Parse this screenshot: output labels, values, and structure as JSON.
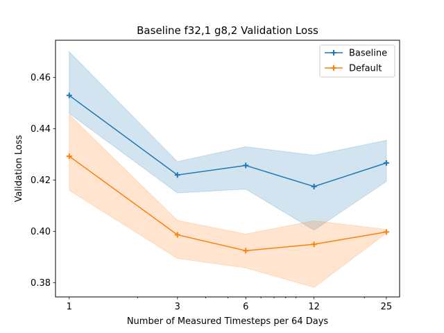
{
  "chart_data": {
    "type": "line",
    "title": "Baseline f32,1 g8,2 Validation Loss",
    "xlabel": "Number of Measured Timesteps per 64 Days",
    "ylabel": "Validation Loss",
    "xscale": "log",
    "x": [
      1,
      3,
      6,
      12,
      25
    ],
    "xticks": [
      1,
      3,
      6,
      12,
      25
    ],
    "xlim": [
      0.87,
      28.6
    ],
    "ylim": [
      0.3745,
      0.4745
    ],
    "yticks": [
      0.38,
      0.4,
      0.42,
      0.44,
      0.46
    ],
    "ytick_labels": [
      "0.38",
      "0.40",
      "0.42",
      "0.44",
      "0.46"
    ],
    "grid": false,
    "legend_position": "top-right",
    "series": [
      {
        "name": "Baseline",
        "color": "#1f77b4",
        "values": [
          0.453,
          0.422,
          0.4257,
          0.4175,
          0.4267
        ],
        "band_upper": [
          0.47,
          0.4272,
          0.433,
          0.4297,
          0.4355
        ],
        "band_lower": [
          0.446,
          0.415,
          0.4165,
          0.4005,
          0.4195
        ]
      },
      {
        "name": "Default",
        "color": "#ff7f0e",
        "values": [
          0.4293,
          0.3987,
          0.3925,
          0.395,
          0.3998
        ],
        "band_upper": [
          0.4455,
          0.4043,
          0.399,
          0.4042,
          0.4008
        ],
        "band_lower": [
          0.416,
          0.3895,
          0.3858,
          0.3782,
          0.3993
        ]
      }
    ]
  }
}
